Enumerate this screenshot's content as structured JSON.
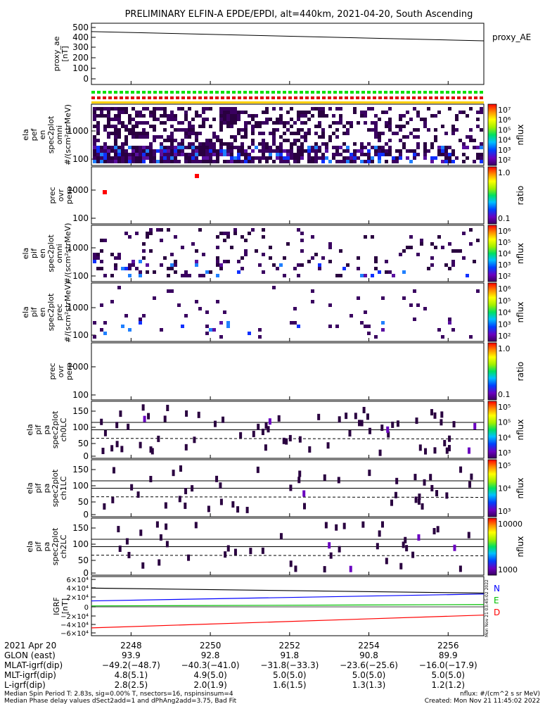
{
  "title": "PRELIMINARY ELFIN-A EPDE/EPDI, alt=440km, 2021-04-20, South Ascending",
  "time_range_min": [
    2247.0,
    2256.9
  ],
  "panels": [
    {
      "id": "proxy-ae",
      "ylabel": [
        "proxy_ae",
        "[nT]"
      ],
      "right_label": "proxy_AE",
      "ticks": [
        "500",
        "400",
        "300",
        "200",
        "100",
        "0"
      ],
      "line": {
        "y0": 460,
        "y1": 370
      }
    },
    {
      "id": "pef-omni",
      "ylabel": [
        "ela",
        "pef",
        "en",
        "spec2plot",
        "omni",
        "#/(scm²strMeV)"
      ],
      "ticks": [
        "1000",
        "100"
      ],
      "colorbar": {
        "label": "nflux",
        "ticks": [
          "10⁷",
          "10⁶",
          "10⁵",
          "10⁴",
          "10³",
          "10²"
        ]
      }
    },
    {
      "id": "pef-ratio",
      "ylabel": [
        "prec",
        "ovr",
        "perp"
      ],
      "ticks": [
        "1000",
        "100"
      ],
      "colorbar": {
        "label": "ratio",
        "ticks": [
          "1.0",
          "0.1"
        ]
      }
    },
    {
      "id": "pif-omni",
      "ylabel": [
        "ela",
        "pif",
        "en",
        "spec2plot",
        "omni",
        "#/(scm²strMeV)"
      ],
      "ticks": [
        "1000",
        "100"
      ],
      "colorbar": {
        "label": "nflux",
        "ticks": [
          "10⁶",
          "10⁵",
          "10⁴",
          "10³",
          "10²"
        ]
      }
    },
    {
      "id": "pif-prec",
      "ylabel": [
        "ela",
        "pif",
        "en",
        "spec2plot",
        "prec",
        "#/(scm²strMeV)"
      ],
      "ticks": [
        "1000",
        "100"
      ],
      "colorbar": {
        "label": "nflux",
        "ticks": [
          "10⁶",
          "10⁵",
          "10⁴",
          "10³",
          "10²"
        ]
      }
    },
    {
      "id": "pif-ratio",
      "ylabel": [
        "prec",
        "ovr",
        "perp"
      ],
      "ticks": [
        "1000",
        "100"
      ],
      "colorbar": {
        "label": "ratio",
        "ticks": [
          "1.0",
          "0.1"
        ]
      }
    },
    {
      "id": "pa-ch0",
      "ylabel": [
        "ela",
        "pif",
        "pa",
        "spec2plot",
        "ch0LC"
      ],
      "ticks": [
        "150",
        "100",
        "50",
        "0"
      ],
      "colorbar": {
        "label": "nflux",
        "ticks": [
          "10⁵",
          "10⁵",
          "10⁴",
          "10³"
        ]
      }
    },
    {
      "id": "pa-ch1",
      "ylabel": [
        "ela",
        "pif",
        "pa",
        "spec2plot",
        "ch1LC"
      ],
      "ticks": [
        "150",
        "100",
        "50",
        "0"
      ],
      "colorbar": {
        "label": "nflux",
        "ticks": [
          "10⁵",
          "10⁴",
          "10³"
        ]
      }
    },
    {
      "id": "pa-ch2",
      "ylabel": [
        "ela",
        "pif",
        "pa",
        "spec2plot",
        "ch2LC"
      ],
      "ticks": [
        "150",
        "100",
        "50",
        "0"
      ],
      "colorbar": {
        "label": "nflux",
        "ticks": [
          "10000",
          "1000"
        ]
      }
    },
    {
      "id": "igrf",
      "ylabel": [
        "IGRF",
        "[nT]"
      ],
      "ticks": [
        "6×10⁴",
        "4×10⁴",
        "2×10⁴",
        "0",
        "−2×10⁴",
        "−4×10⁴",
        "−6×10⁴"
      ],
      "legend": [
        "N",
        "E",
        "D"
      ]
    }
  ],
  "chart_data": {
    "type": "heatmap",
    "title": "PRELIMINARY ELFIN-A EPDE/EPDI, alt=440km, 2021-04-20, South Ascending",
    "x_ticks": [
      "2248",
      "2250",
      "2252",
      "2254",
      "2256"
    ],
    "x_values_min": [
      2248,
      2250,
      2252,
      2254,
      2256
    ],
    "proxy_ae": {
      "start": 460,
      "end": 370,
      "ylim": [
        0,
        500
      ]
    },
    "igrf": {
      "ylim": [
        -60000,
        60000
      ],
      "N": {
        "start": 13000,
        "end": 28000,
        "color": "#0000ff"
      },
      "E": {
        "start": 2000,
        "end": 5000,
        "color": "#00c000"
      },
      "D": {
        "start": -46000,
        "end": -18000,
        "color": "#ff0000"
      },
      "top": {
        "start": 41000,
        "end": 30000,
        "color": "#000000"
      }
    }
  },
  "orbit_rows": [
    {
      "label": "2021 Apr 20",
      "values": [
        "2248",
        "2250",
        "2252",
        "2254",
        "2256"
      ]
    },
    {
      "label": "GLON (east)",
      "values": [
        "93.9",
        "92.8",
        "91.8",
        "90.8",
        "89.9"
      ]
    },
    {
      "label": "MLAT-igrf(dip)",
      "values": [
        "−49.2(−48.7)",
        "−40.3(−41.0)",
        "−31.8(−33.3)",
        "−23.6(−25.6)",
        "−16.0(−17.9)"
      ]
    },
    {
      "label": "MLT-igrf(dip)",
      "values": [
        "4.8(5.1)",
        "4.9(5.0)",
        "5.0(5.0)",
        "5.0(5.0)",
        "5.0(5.0)"
      ]
    },
    {
      "label": "L-igrf(dip)",
      "values": [
        "2.8(2.5)",
        "2.0(1.9)",
        "1.6(1.5)",
        "1.3(1.3)",
        "1.2(1.2)"
      ]
    }
  ],
  "footer": {
    "line1_left": "Median Spin Period T: 2.83s, sig=0.00% T, nsectors=16, nspinsinsum=4",
    "line2_left": "Median Phase delay values dSect2add=1 and dPhAng2add=3.75, Bad Fit",
    "line1_right": "nflux: #/(cm^2 s sr MeV)",
    "line2_right": "Created: Mon Nov 21 11:45:02 2022",
    "vertical_stamp": "Mon Nov 21 03:45:02 2022"
  }
}
